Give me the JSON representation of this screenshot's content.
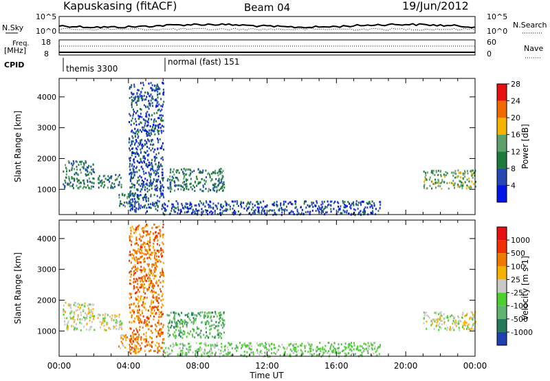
{
  "header": {
    "station": "Kapuskasing (fitACF)",
    "beam": "Beam 04",
    "date": "19/Jun/2012"
  },
  "nsky_panel": {
    "left_label": "N.Sky",
    "left_ticks": [
      "10^5",
      "10^0"
    ],
    "right_ticks": [
      "10^5",
      "10^0"
    ],
    "right_label": "N.Search"
  },
  "freq_panel": {
    "left_label_1": "Freq.",
    "left_label_2": "[MHz]",
    "left_ticks": [
      "18",
      "8"
    ],
    "right_ticks": [
      "60",
      "0"
    ],
    "right_label": "Nave"
  },
  "cpid_panel": {
    "label": "CPID",
    "modes": [
      {
        "name": "themis 3300",
        "start_hour": 0
      },
      {
        "name": "normal (fast) 151",
        "start_hour": 6
      }
    ]
  },
  "chart_data": [
    {
      "type": "heatmap",
      "name": "power",
      "ylabel": "Slant Range [km]",
      "xlabel": "Time UT",
      "ylim": [
        180,
        4600
      ],
      "xlim": [
        0,
        24
      ],
      "y_ticks": [
        "1000",
        "2000",
        "3000",
        "4000"
      ],
      "x_ticks": [
        "00:00",
        "04:00",
        "08:00",
        "12:00",
        "16:00",
        "20:00",
        "00:00"
      ],
      "colorbar": {
        "label": "Power [dB]",
        "ticks": [
          "4",
          "8",
          "12",
          "16",
          "20",
          "24",
          "28"
        ],
        "colors": [
          "#0015e6",
          "#2447b4",
          "#1c7a3b",
          "#5ea06a",
          "#f7b300",
          "#f06a00",
          "#e81010"
        ]
      },
      "regions": [
        {
          "t": [
            0.2,
            2.0
          ],
          "r": [
            1050,
            1950
          ],
          "level": 2
        },
        {
          "t": [
            2.2,
            3.6
          ],
          "r": [
            1050,
            1500
          ],
          "level": 2
        },
        {
          "t": [
            3.4,
            4.6
          ],
          "r": [
            450,
            900
          ],
          "level": 2
        },
        {
          "t": [
            4.0,
            6.0
          ],
          "r": [
            300,
            4500
          ],
          "level": 1
        },
        {
          "t": [
            6.2,
            9.5
          ],
          "r": [
            950,
            1700
          ],
          "level": 2
        },
        {
          "t": [
            6.0,
            18.5
          ],
          "r": [
            200,
            650
          ],
          "level": 1
        },
        {
          "t": [
            21.0,
            24.0
          ],
          "r": [
            1050,
            1650
          ],
          "level": 3
        }
      ]
    },
    {
      "type": "heatmap",
      "name": "velocity",
      "ylabel": "Slant Range [km]",
      "xlabel": "Time UT",
      "ylim": [
        180,
        4600
      ],
      "xlim": [
        0,
        24
      ],
      "y_ticks": [
        "1000",
        "2000",
        "3000",
        "4000"
      ],
      "x_ticks": [
        "00:00",
        "04:00",
        "08:00",
        "12:00",
        "16:00",
        "20:00",
        "00:00"
      ],
      "colorbar": {
        "label": "Velocity [m s-1]",
        "ticks": [
          "1000",
          "500",
          "100",
          "25",
          "-25",
          "-100",
          "-500",
          "-1000"
        ],
        "colors": [
          "#2040b0",
          "#227a58",
          "#5fb56d",
          "#4cd02e",
          "#c8c8c8",
          "#f8b000",
          "#f07a00",
          "#f03000",
          "#e81010"
        ]
      },
      "regions": [
        {
          "t": [
            0.2,
            2.0
          ],
          "r": [
            1050,
            1950
          ],
          "level": 4
        },
        {
          "t": [
            2.2,
            3.6
          ],
          "r": [
            1050,
            1600
          ],
          "level": 4
        },
        {
          "t": [
            3.4,
            4.6
          ],
          "r": [
            450,
            900
          ],
          "level": 5
        },
        {
          "t": [
            4.0,
            6.0
          ],
          "r": [
            300,
            4500
          ],
          "level": 6
        },
        {
          "t": [
            6.2,
            9.5
          ],
          "r": [
            800,
            1650
          ],
          "level": 2
        },
        {
          "t": [
            6.0,
            18.5
          ],
          "r": [
            200,
            650
          ],
          "level": 3
        },
        {
          "t": [
            21.0,
            24.0
          ],
          "r": [
            1050,
            1650
          ],
          "level": 4
        }
      ]
    }
  ]
}
